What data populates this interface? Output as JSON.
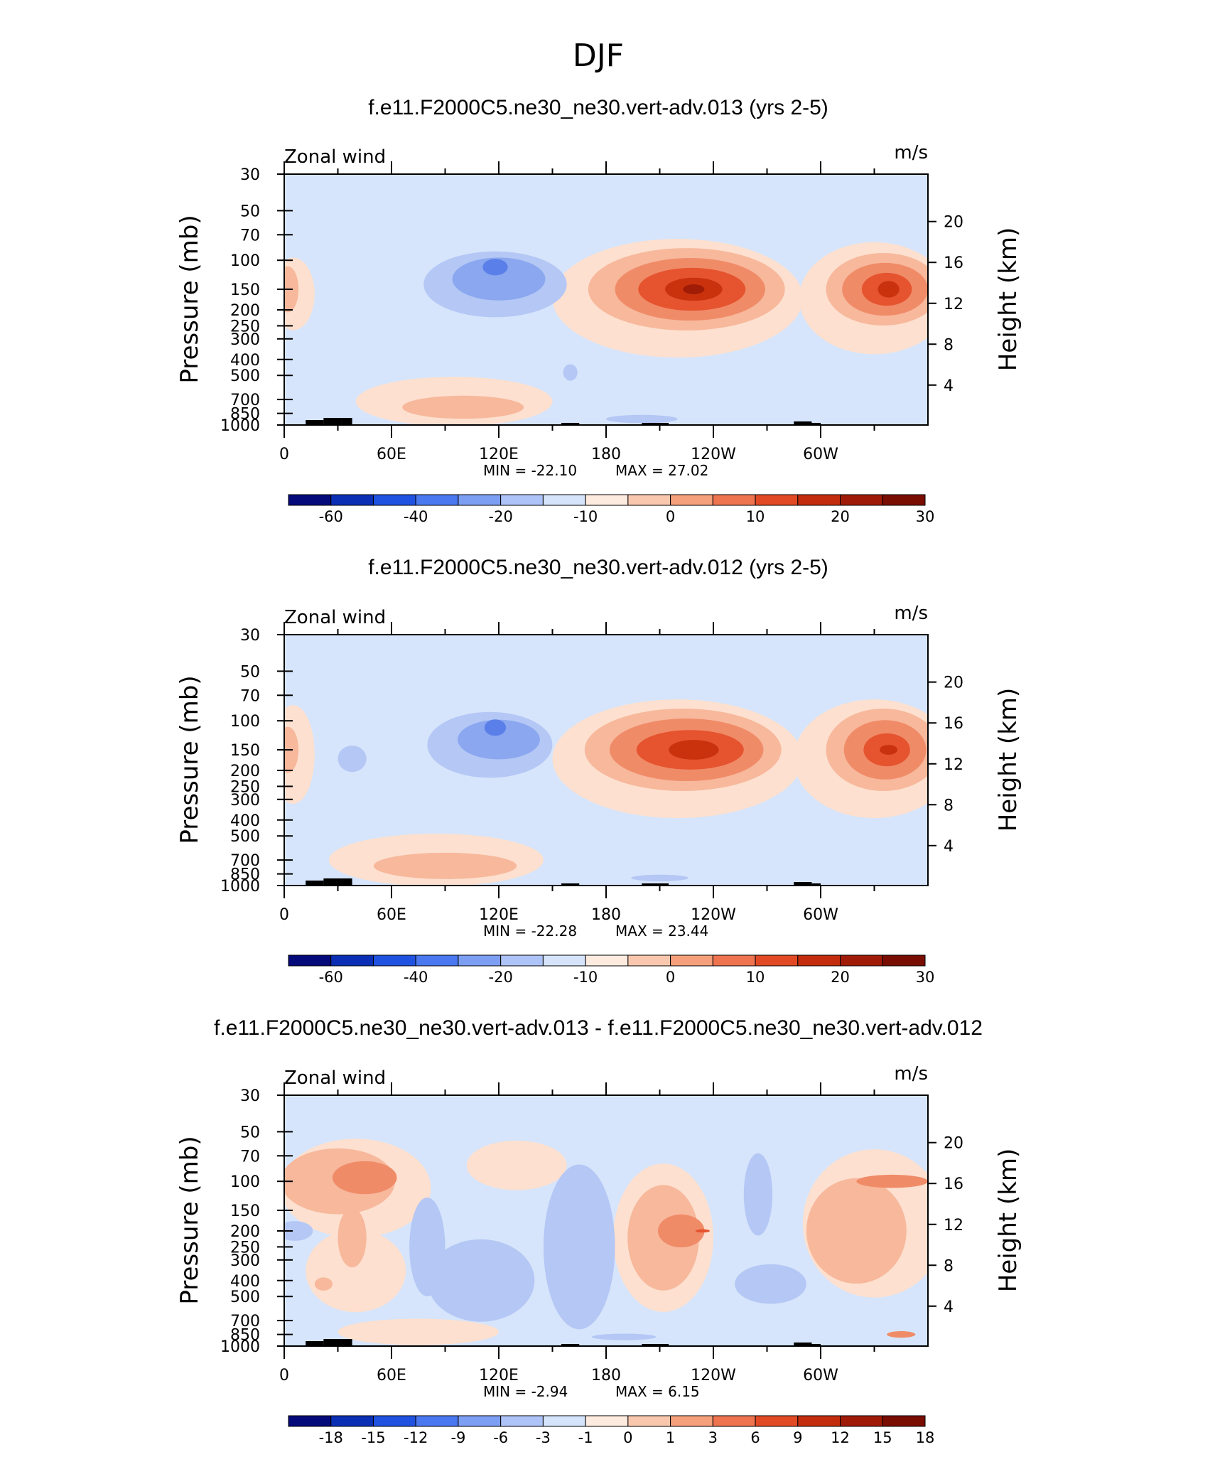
{
  "figure": {
    "title": "DJF",
    "field_label": "Zonal wind",
    "units": "m/s",
    "left_axis_label": "Pressure (mb)",
    "right_axis_label": "Height (km)"
  },
  "chart_data": [
    {
      "type": "heatmap",
      "title": "f.e11.F2000C5.ne30_ne30.vert-adv.013 (yrs 2-5)",
      "field": "Zonal wind",
      "units": "m/s",
      "x_ticks": [
        "0",
        "60E",
        "120E",
        "180",
        "120W",
        "60W"
      ],
      "pressure_ticks": [
        "30",
        "50",
        "70",
        "100",
        "150",
        "200",
        "250",
        "300",
        "400",
        "500",
        "700",
        "850",
        "1000"
      ],
      "height_ticks": [
        "20",
        "16",
        "12",
        "8",
        "4"
      ],
      "min_label": "MIN = -22.10",
      "max_label": "MAX = 27.02",
      "min": -22.1,
      "max": 27.02,
      "colorbar_labels": [
        "-60",
        "-40",
        "-20",
        "-10",
        "0",
        "10",
        "20",
        "30"
      ],
      "contours": [
        {
          "level": 4,
          "fill": "#fde0cf",
          "blobs": [
            {
              "lon": 220,
              "p": 170,
              "rlon": 70,
              "rdec": 0.36
            },
            {
              "lon": 330,
              "p": 170,
              "rlon": 42,
              "rdec": 0.34
            },
            {
              "lon": 95,
              "p": 720,
              "rlon": 55,
              "rdec": 0.15
            },
            {
              "lon": 5,
              "p": 160,
              "rlon": 12,
              "rdec": 0.22
            }
          ]
        },
        {
          "level": 8,
          "fill": "#f7b89c",
          "blobs": [
            {
              "lon": 225,
              "p": 150,
              "rlon": 55,
              "rdec": 0.25
            },
            {
              "lon": 335,
              "p": 150,
              "rlon": 32,
              "rdec": 0.22
            },
            {
              "lon": 100,
              "p": 780,
              "rlon": 34,
              "rdec": 0.07
            },
            {
              "lon": 2,
              "p": 150,
              "rlon": 6,
              "rdec": 0.14
            }
          ]
        },
        {
          "level": 12,
          "fill": "#f08b68",
          "blobs": [
            {
              "lon": 227,
              "p": 150,
              "rlon": 42,
              "rdec": 0.19
            },
            {
              "lon": 336,
              "p": 150,
              "rlon": 24,
              "rdec": 0.16
            }
          ]
        },
        {
          "level": 18,
          "fill": "#e5542f",
          "blobs": [
            {
              "lon": 228,
              "p": 150,
              "rlon": 30,
              "rdec": 0.13
            },
            {
              "lon": 337,
              "p": 150,
              "rlon": 14,
              "rdec": 0.1
            }
          ]
        },
        {
          "level": 22,
          "fill": "#c9320d",
          "blobs": [
            {
              "lon": 229,
              "p": 150,
              "rlon": 16,
              "rdec": 0.07
            },
            {
              "lon": 338,
              "p": 150,
              "rlon": 6,
              "rdec": 0.05
            }
          ]
        },
        {
          "level": 26,
          "fill": "#a01c06",
          "blobs": [
            {
              "lon": 229,
              "p": 150,
              "rlon": 6,
              "rdec": 0.03
            }
          ]
        },
        {
          "level": -8,
          "fill": "#b4c7f5",
          "blobs": [
            {
              "lon": 118,
              "p": 140,
              "rlon": 40,
              "rdec": 0.2
            },
            {
              "lon": 160,
              "p": 480,
              "rlon": 4,
              "rdec": 0.05
            },
            {
              "lon": 200,
              "p": 920,
              "rlon": 20,
              "rdec": 0.025
            }
          ]
        },
        {
          "level": -14,
          "fill": "#8aa7ef",
          "blobs": [
            {
              "lon": 120,
              "p": 130,
              "rlon": 26,
              "rdec": 0.13
            }
          ]
        },
        {
          "level": -20,
          "fill": "#5b7fe8",
          "blobs": [
            {
              "lon": 118,
              "p": 110,
              "rlon": 7,
              "rdec": 0.05
            }
          ]
        }
      ]
    },
    {
      "type": "heatmap",
      "title": "f.e11.F2000C5.ne30_ne30.vert-adv.012 (yrs 2-5)",
      "field": "Zonal wind",
      "units": "m/s",
      "x_ticks": [
        "0",
        "60E",
        "120E",
        "180",
        "120W",
        "60W"
      ],
      "pressure_ticks": [
        "30",
        "50",
        "70",
        "100",
        "150",
        "200",
        "250",
        "300",
        "400",
        "500",
        "700",
        "850",
        "1000"
      ],
      "height_ticks": [
        "20",
        "16",
        "12",
        "8",
        "4"
      ],
      "min_label": "MIN = -22.28",
      "max_label": "MAX = 23.44",
      "min": -22.28,
      "max": 23.44,
      "colorbar_labels": [
        "-60",
        "-40",
        "-20",
        "-10",
        "0",
        "10",
        "20",
        "30"
      ],
      "contours": [
        {
          "level": 4,
          "fill": "#fde0cf",
          "blobs": [
            {
              "lon": 220,
              "p": 170,
              "rlon": 70,
              "rdec": 0.36
            },
            {
              "lon": 330,
              "p": 170,
              "rlon": 45,
              "rdec": 0.36
            },
            {
              "lon": 85,
              "p": 700,
              "rlon": 60,
              "rdec": 0.16
            },
            {
              "lon": 5,
              "p": 160,
              "rlon": 12,
              "rdec": 0.3
            }
          ]
        },
        {
          "level": 8,
          "fill": "#f7b89c",
          "blobs": [
            {
              "lon": 223,
              "p": 150,
              "rlon": 55,
              "rdec": 0.25
            },
            {
              "lon": 335,
              "p": 150,
              "rlon": 32,
              "rdec": 0.25
            },
            {
              "lon": 90,
              "p": 760,
              "rlon": 40,
              "rdec": 0.08
            },
            {
              "lon": 2,
              "p": 150,
              "rlon": 6,
              "rdec": 0.14
            }
          ]
        },
        {
          "level": 12,
          "fill": "#f08b68",
          "blobs": [
            {
              "lon": 225,
              "p": 150,
              "rlon": 43,
              "rdec": 0.19
            },
            {
              "lon": 336,
              "p": 150,
              "rlon": 23,
              "rdec": 0.18
            }
          ]
        },
        {
          "level": 18,
          "fill": "#e5542f",
          "blobs": [
            {
              "lon": 227,
              "p": 150,
              "rlon": 30,
              "rdec": 0.12
            },
            {
              "lon": 337,
              "p": 150,
              "rlon": 13,
              "rdec": 0.1
            }
          ]
        },
        {
          "level": 22,
          "fill": "#c9320d",
          "blobs": [
            {
              "lon": 229,
              "p": 150,
              "rlon": 14,
              "rdec": 0.06
            },
            {
              "lon": 338,
              "p": 150,
              "rlon": 5,
              "rdec": 0.03
            }
          ]
        },
        {
          "level": -8,
          "fill": "#b4c7f5",
          "blobs": [
            {
              "lon": 115,
              "p": 140,
              "rlon": 35,
              "rdec": 0.2
            },
            {
              "lon": 38,
              "p": 170,
              "rlon": 8,
              "rdec": 0.08
            },
            {
              "lon": 210,
              "p": 900,
              "rlon": 16,
              "rdec": 0.02
            }
          ]
        },
        {
          "level": -14,
          "fill": "#8aa7ef",
          "blobs": [
            {
              "lon": 120,
              "p": 130,
              "rlon": 23,
              "rdec": 0.12
            }
          ]
        },
        {
          "level": -20,
          "fill": "#5b7fe8",
          "blobs": [
            {
              "lon": 118,
              "p": 110,
              "rlon": 6,
              "rdec": 0.05
            }
          ]
        }
      ]
    },
    {
      "type": "heatmap",
      "title": "f.e11.F2000C5.ne30_ne30.vert-adv.013 - f.e11.F2000C5.ne30_ne30.vert-adv.012",
      "field": "Zonal wind",
      "units": "m/s",
      "x_ticks": [
        "0",
        "60E",
        "120E",
        "180",
        "120W",
        "60W"
      ],
      "pressure_ticks": [
        "30",
        "50",
        "70",
        "100",
        "150",
        "200",
        "250",
        "300",
        "400",
        "500",
        "700",
        "850",
        "1000"
      ],
      "height_ticks": [
        "20",
        "16",
        "12",
        "8",
        "4"
      ],
      "min_label": "MIN = -2.94",
      "max_label": "MAX = 6.15",
      "min": -2.94,
      "max": 6.15,
      "colorbar_labels": [
        "-18",
        "-15",
        "-12",
        "-9",
        "-6",
        "-3",
        "-1",
        "0",
        "1",
        "3",
        "6",
        "9",
        "12",
        "15",
        "18"
      ],
      "contours": [
        {
          "level": 0.5,
          "fill": "#fde0cf",
          "blobs": [
            {
              "lon": 40,
              "p": 110,
              "rlon": 42,
              "rdec": 0.3
            },
            {
              "lon": 40,
              "p": 350,
              "rlon": 28,
              "rdec": 0.25
            },
            {
              "lon": 212,
              "p": 220,
              "rlon": 28,
              "rdec": 0.45
            },
            {
              "lon": 330,
              "p": 180,
              "rlon": 40,
              "rdec": 0.45
            },
            {
              "lon": 130,
              "p": 80,
              "rlon": 28,
              "rdec": 0.15
            },
            {
              "lon": 75,
              "p": 820,
              "rlon": 45,
              "rdec": 0.08
            }
          ]
        },
        {
          "level": 2,
          "fill": "#f7b89c",
          "blobs": [
            {
              "lon": 30,
              "p": 100,
              "rlon": 32,
              "rdec": 0.2
            },
            {
              "lon": 38,
              "p": 220,
              "rlon": 8,
              "rdec": 0.18
            },
            {
              "lon": 212,
              "p": 220,
              "rlon": 20,
              "rdec": 0.32
            },
            {
              "lon": 320,
              "p": 200,
              "rlon": 28,
              "rdec": 0.32
            },
            {
              "lon": 22,
              "p": 420,
              "rlon": 5,
              "rdec": 0.04
            }
          ]
        },
        {
          "level": 3.5,
          "fill": "#f08b68",
          "blobs": [
            {
              "lon": 45,
              "p": 95,
              "rlon": 18,
              "rdec": 0.1
            },
            {
              "lon": 222,
              "p": 200,
              "rlon": 13,
              "rdec": 0.1
            },
            {
              "lon": 340,
              "p": 100,
              "rlon": 20,
              "rdec": 0.04
            },
            {
              "lon": 345,
              "p": 850,
              "rlon": 8,
              "rdec": 0.02
            }
          ]
        },
        {
          "level": 5.5,
          "fill": "#e5542f",
          "blobs": [
            {
              "lon": 234,
              "p": 200,
              "rlon": 4,
              "rdec": 0.01
            }
          ]
        },
        {
          "level": -0.7,
          "fill": "#b4c7f5",
          "blobs": [
            {
              "lon": 80,
              "p": 250,
              "rlon": 10,
              "rdec": 0.3
            },
            {
              "lon": 110,
              "p": 400,
              "rlon": 30,
              "rdec": 0.25
            },
            {
              "lon": 165,
              "p": 250,
              "rlon": 20,
              "rdec": 0.5
            },
            {
              "lon": 265,
              "p": 120,
              "rlon": 8,
              "rdec": 0.25
            },
            {
              "lon": 272,
              "p": 420,
              "rlon": 20,
              "rdec": 0.12
            },
            {
              "lon": 6,
              "p": 200,
              "rlon": 10,
              "rdec": 0.06
            },
            {
              "lon": 190,
              "p": 880,
              "rlon": 18,
              "rdec": 0.02
            }
          ]
        }
      ]
    }
  ]
}
